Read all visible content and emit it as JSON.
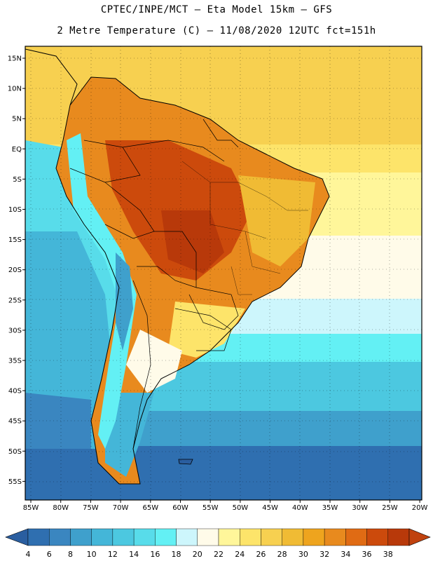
{
  "header": {
    "line1": "CPTEC/INPE/MCT –  Eta Model 15km – GFS",
    "line2": "2 Metre Temperature (C) – 11/08/2020 12UTC fct=151h"
  },
  "axes": {
    "lat_labels": [
      "15N",
      "10N",
      "5N",
      "EQ",
      "5S",
      "10S",
      "15S",
      "20S",
      "25S",
      "30S",
      "35S",
      "40S",
      "45S",
      "50S",
      "55S"
    ],
    "lon_labels": [
      "85W",
      "80W",
      "75W",
      "70W",
      "65W",
      "60W",
      "55W",
      "50W",
      "45W",
      "40W",
      "35W",
      "30W",
      "25W",
      "20W"
    ]
  },
  "colorbar": {
    "labels": [
      "4",
      "6",
      "8",
      "10",
      "12",
      "14",
      "16",
      "18",
      "20",
      "22",
      "24",
      "26",
      "28",
      "30",
      "32",
      "34",
      "36",
      "38"
    ],
    "colors": [
      "#2f6fb0",
      "#3a86c0",
      "#3fa0cc",
      "#44b6d8",
      "#4cc8e0",
      "#58dcea",
      "#63f0f4",
      "#cdf6fc",
      "#fffbe9",
      "#fff69a",
      "#fde46a",
      "#f7d050",
      "#f0bb34",
      "#eea41e",
      "#e88a1e",
      "#e06b14",
      "#cc4a0c",
      "#b8390a"
    ],
    "under_color": "#2a5ea0",
    "over_color": "#c0420e"
  }
}
